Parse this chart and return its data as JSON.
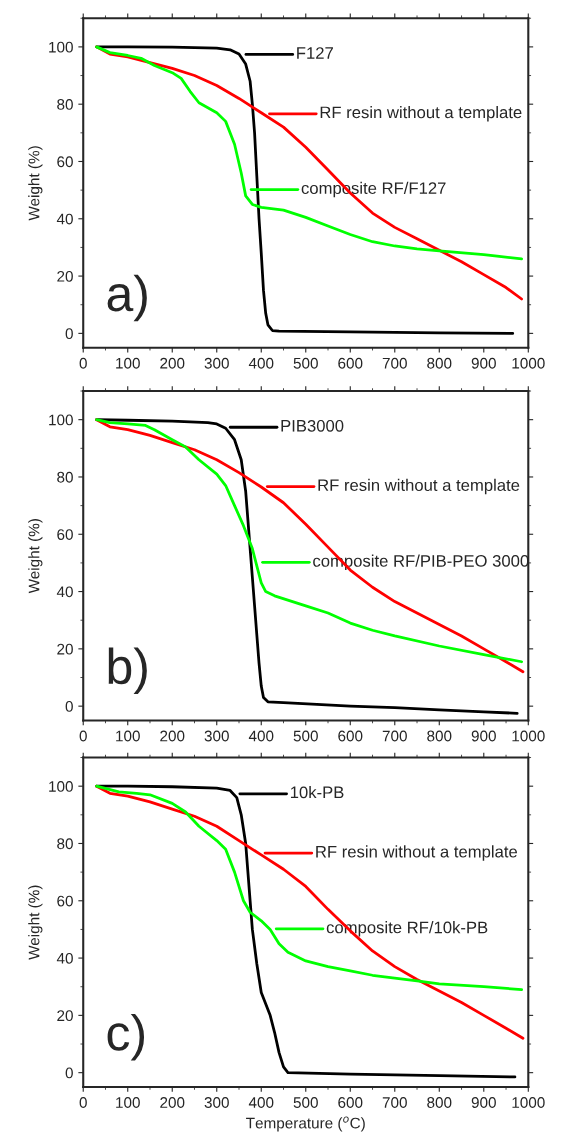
{
  "chart_data": [
    {
      "type": "line",
      "ylabel": "Weight (%)",
      "xlim": [
        0,
        1000
      ],
      "ylim": [
        -5,
        110
      ],
      "xticks": [
        0,
        100,
        200,
        300,
        400,
        500,
        600,
        700,
        800,
        900,
        1000
      ],
      "yticks": [
        0,
        20,
        40,
        60,
        80,
        100
      ],
      "annotations": [
        "a)"
      ],
      "legend": "top right",
      "series": [
        {
          "name": "F127",
          "color": "#000000",
          "x": [
            30,
            100,
            200,
            300,
            330,
            350,
            365,
            375,
            380,
            385,
            390,
            395,
            400,
            405,
            410,
            415,
            425,
            440,
            600,
            800,
            965
          ],
          "values": [
            100,
            100,
            99.9,
            99.6,
            99,
            97.5,
            94,
            88,
            80,
            70,
            55,
            40,
            28,
            15,
            7,
            3,
            1,
            0.8,
            0.5,
            0.2,
            0
          ]
        },
        {
          "name": "RF resin without a template",
          "color": "#ff0000",
          "x": [
            30,
            60,
            100,
            150,
            200,
            250,
            300,
            350,
            400,
            450,
            500,
            550,
            600,
            650,
            700,
            750,
            800,
            850,
            900,
            950,
            985
          ],
          "values": [
            100,
            97.5,
            96.5,
            94.5,
            92.5,
            90,
            86.5,
            82,
            77,
            72,
            65,
            57,
            49,
            42,
            37,
            33,
            29,
            25,
            20.5,
            16,
            12
          ]
        },
        {
          "name": "composite RF/F127",
          "color": "#00ff00",
          "x": [
            30,
            60,
            100,
            130,
            160,
            200,
            220,
            240,
            260,
            300,
            320,
            340,
            355,
            365,
            380,
            400,
            450,
            500,
            550,
            600,
            650,
            700,
            750,
            800,
            900,
            985
          ],
          "values": [
            100,
            98,
            97,
            96,
            93.5,
            91,
            89,
            84.5,
            80.5,
            77,
            74,
            66,
            56,
            48,
            45,
            44,
            43,
            40.5,
            37.5,
            34.5,
            32,
            30.5,
            29.5,
            28.8,
            27.5,
            26
          ]
        }
      ]
    },
    {
      "type": "line",
      "ylabel": "Weight (%)",
      "xlim": [
        0,
        1000
      ],
      "ylim": [
        -5,
        110
      ],
      "xticks": [
        0,
        100,
        200,
        300,
        400,
        500,
        600,
        700,
        800,
        900,
        1000
      ],
      "yticks": [
        0,
        20,
        40,
        60,
        80,
        100
      ],
      "annotations": [
        "b)"
      ],
      "legend": "top right",
      "series": [
        {
          "name": "PIB3000",
          "color": "#000000",
          "x": [
            30,
            100,
            200,
            280,
            300,
            320,
            340,
            355,
            365,
            370,
            375,
            380,
            385,
            390,
            395,
            400,
            405,
            415,
            450,
            600,
            700,
            800,
            900,
            975
          ],
          "values": [
            100,
            99.8,
            99.5,
            99,
            98.5,
            97,
            93,
            86,
            75,
            65,
            55,
            45,
            35,
            25,
            15,
            7,
            3,
            1.5,
            1.2,
            0,
            -0.5,
            -1.3,
            -2,
            -2.5
          ]
        },
        {
          "name": "RF resin without a template",
          "color": "#ff0000",
          "x": [
            30,
            60,
            100,
            150,
            200,
            250,
            300,
            350,
            400,
            450,
            500,
            550,
            600,
            650,
            700,
            750,
            800,
            850,
            900,
            950,
            988
          ],
          "values": [
            100,
            97.5,
            96.5,
            94.5,
            92,
            89.5,
            86,
            81.5,
            76.5,
            71,
            63.5,
            55.5,
            47.5,
            41.5,
            36.5,
            32.5,
            28.5,
            24.5,
            20,
            15.5,
            12
          ]
        },
        {
          "name": "composite RF/PIB-PEO 3000",
          "color": "#00ff00",
          "x": [
            30,
            60,
            100,
            140,
            160,
            200,
            230,
            260,
            300,
            320,
            340,
            360,
            380,
            390,
            400,
            410,
            430,
            500,
            550,
            600,
            650,
            700,
            800,
            900,
            985
          ],
          "values": [
            100,
            99,
            98.5,
            98,
            96.5,
            93,
            90.5,
            86,
            81,
            77,
            70,
            63,
            55,
            49,
            43,
            40,
            38.5,
            35,
            32.5,
            29,
            26.5,
            24.5,
            21,
            18,
            15.5
          ]
        }
      ]
    },
    {
      "type": "line",
      "xlabel": "Temperature ($^{o}$C)",
      "ylabel": "Weight (%)",
      "xlim": [
        0,
        1000
      ],
      "ylim": [
        -5,
        110
      ],
      "xticks": [
        0,
        100,
        200,
        300,
        400,
        500,
        600,
        700,
        800,
        900,
        1000
      ],
      "yticks": [
        0,
        20,
        40,
        60,
        80,
        100
      ],
      "annotations": [
        "c)"
      ],
      "legend": "top right",
      "series": [
        {
          "name": "10k-PB",
          "color": "#000000",
          "x": [
            30,
            100,
            200,
            300,
            330,
            345,
            355,
            365,
            370,
            375,
            380,
            390,
            400,
            420,
            430,
            440,
            450,
            460,
            600,
            800,
            970
          ],
          "values": [
            100,
            100,
            99.8,
            99.3,
            98.5,
            96,
            90,
            80,
            70,
            60,
            50,
            38,
            28,
            20,
            14,
            7,
            2,
            0,
            -0.5,
            -1,
            -1.5
          ]
        },
        {
          "name": "RF resin without a template",
          "color": "#ff0000",
          "x": [
            30,
            60,
            100,
            150,
            200,
            250,
            300,
            350,
            400,
            450,
            500,
            550,
            600,
            650,
            700,
            750,
            800,
            850,
            900,
            950,
            988
          ],
          "values": [
            100,
            97.5,
            96.5,
            94.5,
            92,
            89.5,
            86,
            81,
            76,
            71,
            65,
            57,
            49.5,
            42.5,
            37,
            32.5,
            28.5,
            24.5,
            20,
            15.5,
            12
          ]
        },
        {
          "name": "composite RF/10k-PB",
          "color": "#00ff00",
          "x": [
            30,
            80,
            120,
            150,
            200,
            230,
            260,
            300,
            320,
            340,
            360,
            375,
            400,
            420,
            440,
            460,
            500,
            550,
            600,
            650,
            700,
            750,
            800,
            900,
            985
          ],
          "values": [
            100,
            98,
            97.5,
            97,
            94,
            91,
            86,
            81,
            78,
            70,
            60,
            56,
            53,
            50,
            45,
            42,
            39,
            37,
            35.5,
            34,
            33,
            32,
            31,
            30,
            29
          ]
        }
      ]
    }
  ]
}
